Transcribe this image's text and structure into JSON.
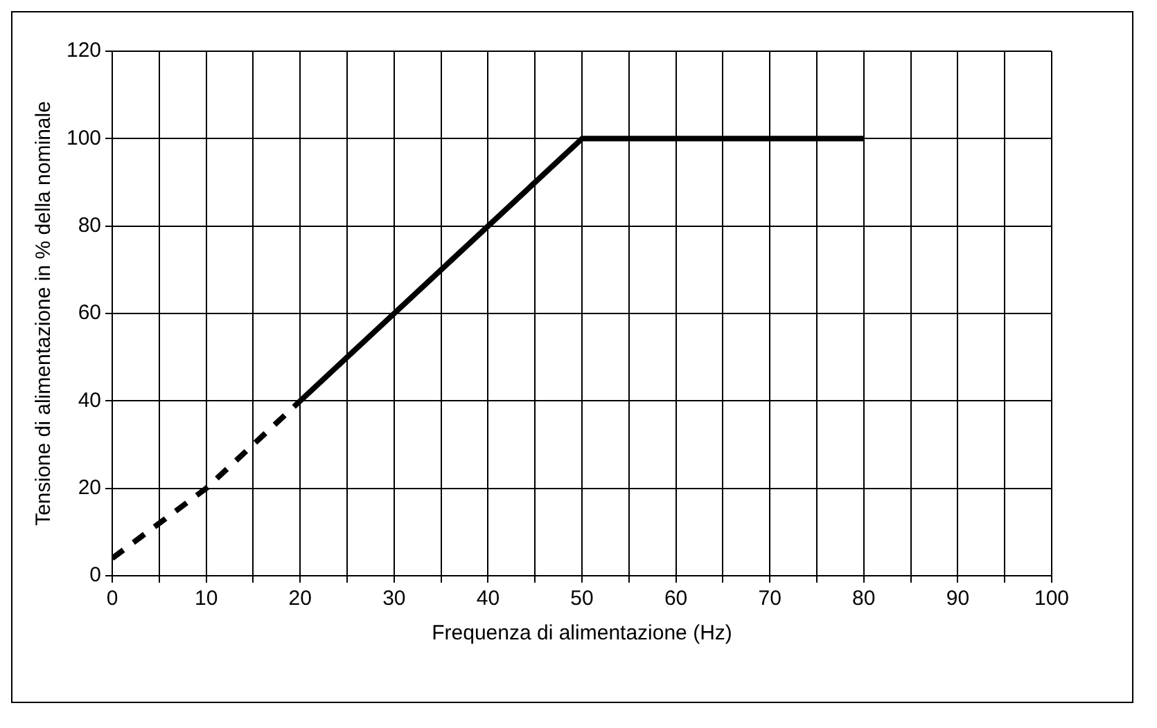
{
  "chart_data": {
    "type": "line",
    "xlabel": "Frequenza di alimentazione (Hz)",
    "ylabel": "Tensione di alimentazione in % della nominale",
    "xlim": [
      0,
      100
    ],
    "xticks": [
      0,
      {
        "value": 5,
        "label": null
      },
      10,
      {
        "value": 15,
        "label": null
      },
      20,
      {
        "value": 25,
        "label": null
      },
      30,
      {
        "value": 35,
        "label": null
      },
      40,
      {
        "value": 45,
        "label": null
      },
      50,
      {
        "value": 55,
        "label": null
      },
      60,
      {
        "value": 65,
        "label": null
      },
      70,
      {
        "value": 75,
        "label": null
      },
      80,
      {
        "value": 85,
        "label": null
      },
      90,
      {
        "value": 95,
        "label": null
      },
      100
    ],
    "ylim": [
      0,
      120
    ],
    "yticks": [
      0,
      20,
      40,
      60,
      80,
      100,
      120
    ],
    "grid": true,
    "legend": false,
    "marker": "none",
    "series": [
      {
        "color": "#000000",
        "x": [
          0,
          10,
          20
        ],
        "values": [
          4,
          20,
          40
        ],
        "line_style": "dashed"
      },
      {
        "color": "#000000",
        "x": [
          20,
          50,
          80
        ],
        "values": [
          40,
          100,
          100
        ],
        "line_style": "solid"
      }
    ]
  }
}
